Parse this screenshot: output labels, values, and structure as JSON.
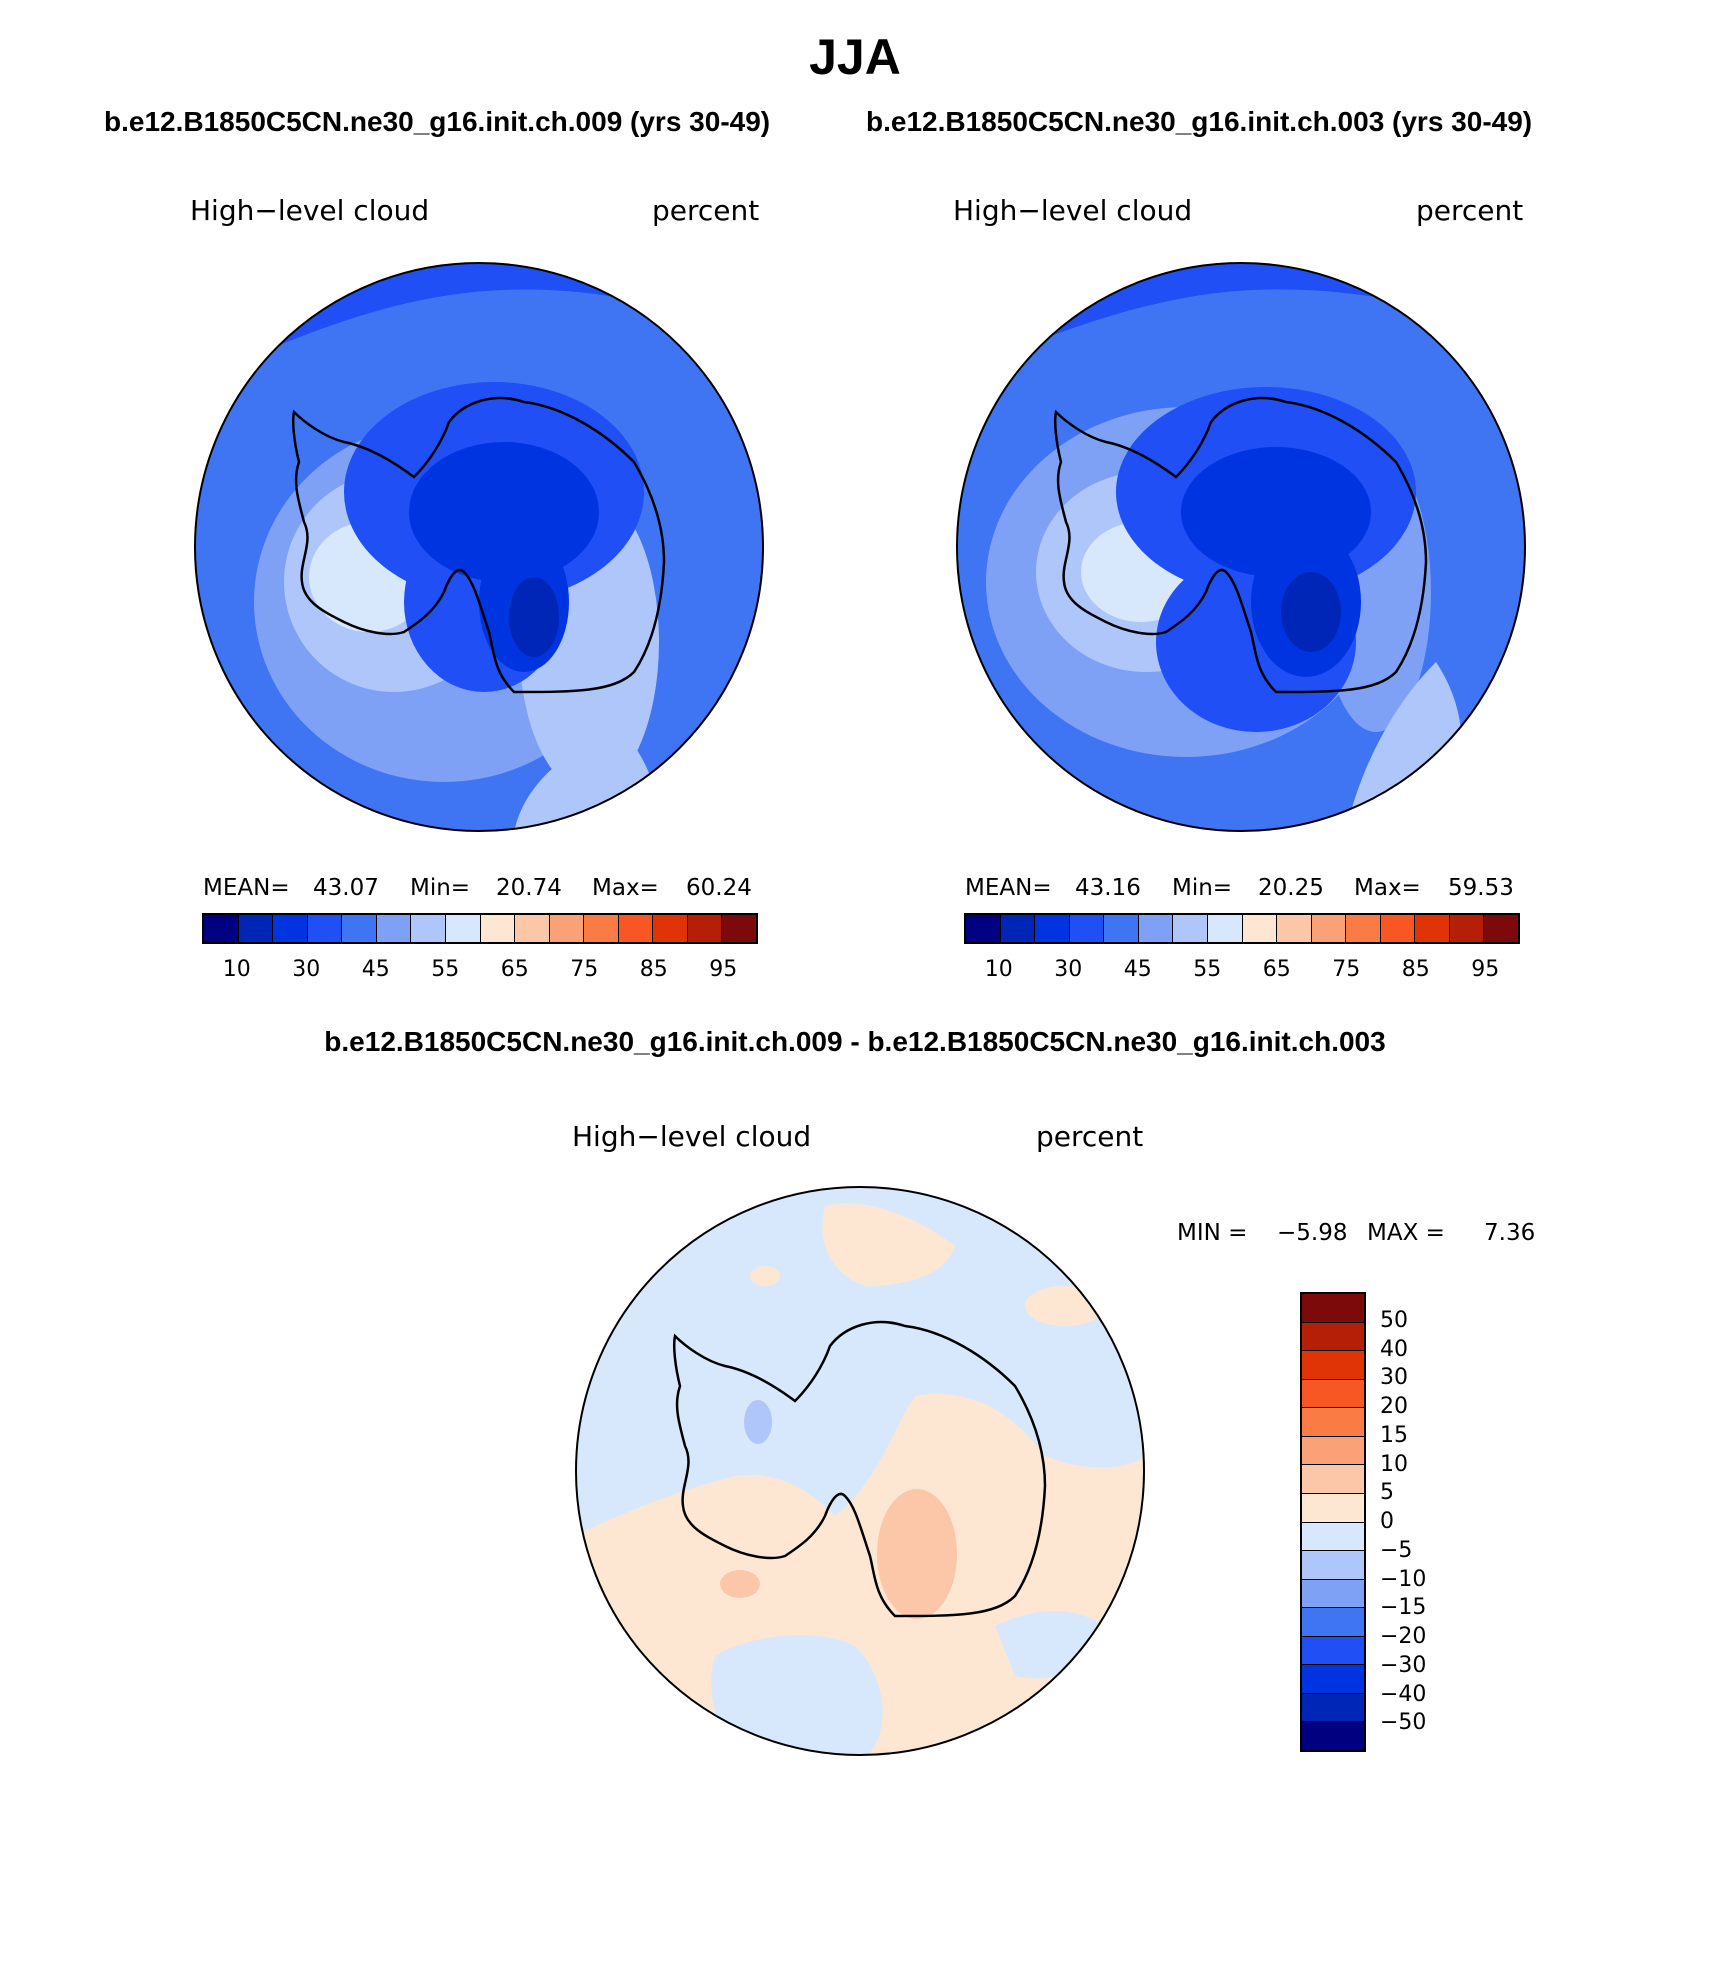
{
  "title": "JJA",
  "panels": [
    {
      "case": "b.e12.B1850C5CN.ne30_g16.init.ch.009 (yrs 30-49)",
      "variable": "High−level cloud",
      "units": "percent",
      "stats": {
        "mean_label": "MEAN=",
        "mean": "43.07",
        "min_label": "Min=",
        "min": "20.74",
        "max_label": "Max=",
        "max": "60.24"
      }
    },
    {
      "case": "b.e12.B1850C5CN.ne30_g16.init.ch.003 (yrs 30-49)",
      "variable": "High−level cloud",
      "units": "percent",
      "stats": {
        "mean_label": "MEAN=",
        "mean": "43.16",
        "min_label": "Min=",
        "min": "20.25",
        "max_label": "Max=",
        "max": "59.53"
      }
    }
  ],
  "colorbar": {
    "ticks": [
      "10",
      "30",
      "45",
      "55",
      "65",
      "75",
      "85",
      "95"
    ],
    "colors": [
      "#000080",
      "#0026b8",
      "#0034e0",
      "#1f4ff5",
      "#3f75f2",
      "#7ea1f5",
      "#aec6fa",
      "#d7e8fc",
      "#fde7d3",
      "#fcc6a8",
      "#fba178",
      "#fb7b45",
      "#f85622",
      "#e13406",
      "#b51f07",
      "#7d0a0a"
    ]
  },
  "difference": {
    "title": "b.e12.B1850C5CN.ne30_g16.init.ch.009 - b.e12.B1850C5CN.ne30_g16.init.ch.003",
    "variable": "High−level cloud",
    "units": "percent",
    "stats": {
      "min_label": "MIN =",
      "min": "−5.98",
      "max_label": "MAX =",
      "max": "7.36"
    },
    "ticks": [
      "50",
      "40",
      "30",
      "20",
      "15",
      "10",
      "5",
      "0",
      "−5",
      "−10",
      "−15",
      "−20",
      "−30",
      "−40",
      "−50"
    ],
    "colors": [
      "#7d0a0a",
      "#b51f07",
      "#e13406",
      "#f85622",
      "#fb7b45",
      "#fba178",
      "#fcc6a8",
      "#fde7d3",
      "#d7e8fc",
      "#aec6fa",
      "#7ea1f5",
      "#3f75f2",
      "#1f4ff5",
      "#0034e0",
      "#0026b8",
      "#000080"
    ]
  }
}
